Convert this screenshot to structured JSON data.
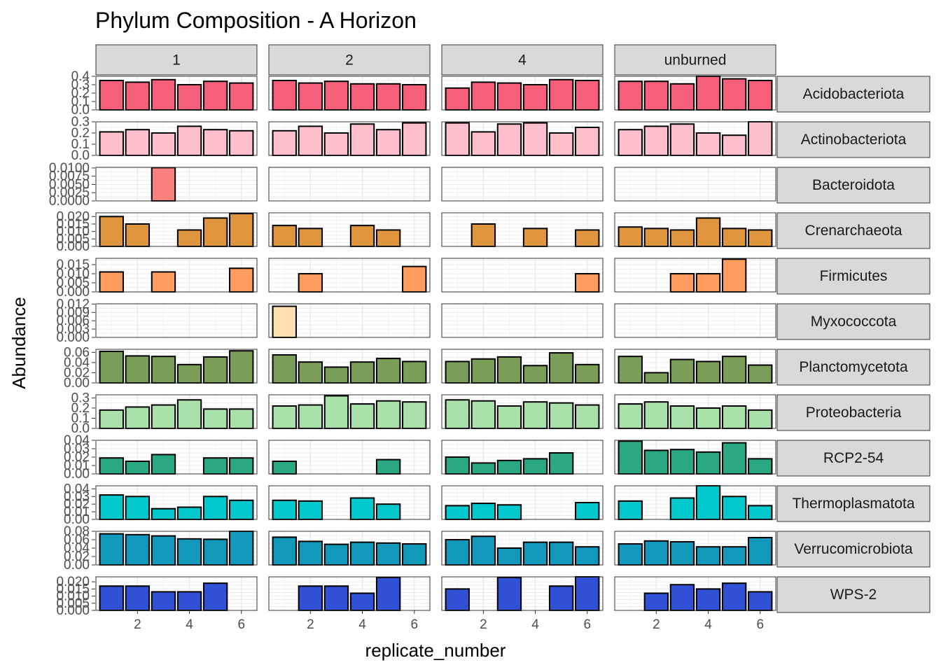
{
  "chart_data": {
    "type": "bar",
    "title": "Phylum Composition - A Horizon",
    "xlabel": "replicate_number",
    "ylabel": "Abundance",
    "facet_columns": [
      "1",
      "2",
      "4",
      "unburned"
    ],
    "x_ticks": [
      2,
      4,
      6
    ],
    "x_range": [
      0.4,
      6.6
    ],
    "grid": true,
    "legend": "none",
    "rows": [
      {
        "phylum": "Acidobacteriota",
        "color": "#f55f7a",
        "ylim": [
          0,
          0.4
        ],
        "y_ticks": [
          "0.4",
          "0.3",
          "0.2",
          "0.1",
          "0.0"
        ],
        "y_tick_values": [
          0.4,
          0.3,
          0.2,
          0.1,
          0.0
        ],
        "values": {
          "1": [
            0.35,
            0.33,
            0.36,
            0.3,
            0.34,
            0.32
          ],
          "2": [
            0.35,
            0.32,
            0.34,
            0.31,
            0.31,
            0.3
          ],
          "4": [
            0.26,
            0.33,
            0.32,
            0.3,
            0.36,
            0.35
          ],
          "unburned": [
            0.34,
            0.34,
            0.31,
            0.4,
            0.37,
            0.35
          ]
        }
      },
      {
        "phylum": "Actinobacteriota",
        "color": "#ffc0cb",
        "ylim": [
          0,
          0.3
        ],
        "y_ticks": [
          "0.3",
          "0.2",
          "0.1",
          "0.0"
        ],
        "y_tick_values": [
          0.3,
          0.2,
          0.1,
          0.0
        ],
        "values": {
          "1": [
            0.21,
            0.23,
            0.2,
            0.26,
            0.23,
            0.22
          ],
          "2": [
            0.22,
            0.26,
            0.2,
            0.28,
            0.23,
            0.29
          ],
          "4": [
            0.29,
            0.21,
            0.28,
            0.29,
            0.2,
            0.25
          ],
          "unburned": [
            0.23,
            0.26,
            0.28,
            0.2,
            0.18,
            0.3
          ]
        }
      },
      {
        "phylum": "Bacteroidota",
        "color": "#fa7f7f",
        "ylim": [
          0,
          0.0102
        ],
        "y_ticks": [
          "0.0100",
          "0.0075",
          "0.0050",
          "0.0025",
          "0.0000"
        ],
        "y_tick_values": [
          0.01,
          0.0075,
          0.005,
          0.0025,
          0.0
        ],
        "values": {
          "1": [
            null,
            null,
            0.0101,
            null,
            null,
            null
          ],
          "2": [
            null,
            null,
            null,
            null,
            null,
            null
          ],
          "4": [
            null,
            null,
            null,
            null,
            null,
            null
          ],
          "unburned": [
            null,
            null,
            null,
            null,
            null,
            null
          ]
        }
      },
      {
        "phylum": "Crenarchaeota",
        "color": "#de953e",
        "ylim": [
          0,
          0.0225
        ],
        "y_ticks": [
          "0.020",
          "0.015",
          "0.010",
          "0.005",
          "0.000"
        ],
        "y_tick_values": [
          0.02,
          0.015,
          0.01,
          0.005,
          0.0
        ],
        "values": {
          "1": [
            0.02,
            0.015,
            null,
            0.011,
            0.019,
            0.022
          ],
          "2": [
            0.014,
            0.012,
            null,
            0.014,
            0.011,
            null
          ],
          "4": [
            null,
            0.015,
            null,
            0.012,
            null,
            0.011
          ],
          "unburned": [
            0.013,
            0.012,
            0.011,
            0.019,
            0.012,
            0.011
          ]
        }
      },
      {
        "phylum": "Firmicutes",
        "color": "#ff9c5e",
        "ylim": [
          0,
          0.0185
        ],
        "y_ticks": [
          "0.015",
          "0.010",
          "0.005",
          "0.000"
        ],
        "y_tick_values": [
          0.015,
          0.01,
          0.005,
          0.0
        ],
        "values": {
          "1": [
            0.011,
            null,
            0.011,
            null,
            null,
            0.013
          ],
          "2": [
            null,
            0.01,
            null,
            null,
            null,
            0.014
          ],
          "4": [
            null,
            null,
            null,
            null,
            null,
            0.01
          ],
          "unburned": [
            null,
            null,
            0.01,
            0.01,
            0.018,
            null
          ]
        }
      },
      {
        "phylum": "Myxococcota",
        "color": "#ffe0b0",
        "ylim": [
          0,
          0.0121
        ],
        "y_ticks": [
          "0.012",
          "0.009",
          "0.006",
          "0.003",
          "0.000"
        ],
        "y_tick_values": [
          0.012,
          0.009,
          0.006,
          0.003,
          0.0
        ],
        "values": {
          "1": [
            null,
            null,
            null,
            null,
            null,
            null
          ],
          "2": [
            0.0112,
            null,
            null,
            null,
            null,
            null
          ],
          "4": [
            null,
            null,
            null,
            null,
            null,
            null
          ],
          "unburned": [
            null,
            null,
            null,
            null,
            null,
            null
          ]
        }
      },
      {
        "phylum": "Planctomycetota",
        "color": "#7a9e58",
        "ylim": [
          0,
          0.066
        ],
        "y_ticks": [
          "0.06",
          "0.04",
          "0.02",
          "0.00"
        ],
        "y_tick_values": [
          0.06,
          0.04,
          0.02,
          0.0
        ],
        "values": {
          "1": [
            0.062,
            0.053,
            0.052,
            0.036,
            0.051,
            0.063
          ],
          "2": [
            0.055,
            0.041,
            0.031,
            0.041,
            0.048,
            0.042
          ],
          "4": [
            0.042,
            0.047,
            0.051,
            0.034,
            0.059,
            0.036
          ],
          "unburned": [
            0.052,
            0.02,
            0.046,
            0.042,
            0.052,
            0.035
          ]
        }
      },
      {
        "phylum": "Proteobacteria",
        "color": "#aae0aa",
        "ylim": [
          0,
          0.33
        ],
        "y_ticks": [
          "0.3",
          "0.2",
          "0.1",
          "0.0"
        ],
        "y_tick_values": [
          0.3,
          0.2,
          0.1,
          0.0
        ],
        "values": {
          "1": [
            0.18,
            0.21,
            0.23,
            0.28,
            0.19,
            0.19
          ],
          "2": [
            0.22,
            0.23,
            0.32,
            0.24,
            0.27,
            0.26
          ],
          "4": [
            0.28,
            0.27,
            0.22,
            0.26,
            0.25,
            0.23
          ],
          "unburned": [
            0.24,
            0.26,
            0.22,
            0.2,
            0.22,
            0.18
          ]
        }
      },
      {
        "phylum": "RCP2-54",
        "color": "#2aa884",
        "ylim": [
          0,
          0.04
        ],
        "y_ticks": [
          "0.04",
          "0.03",
          "0.02",
          "0.01",
          "0.00"
        ],
        "y_tick_values": [
          0.04,
          0.03,
          0.02,
          0.01,
          0.0
        ],
        "values": {
          "1": [
            0.019,
            0.015,
            0.023,
            null,
            0.019,
            0.019
          ],
          "2": [
            0.015,
            null,
            null,
            null,
            0.017,
            null
          ],
          "4": [
            0.02,
            0.013,
            0.016,
            0.018,
            0.025,
            null
          ],
          "unburned": [
            0.039,
            0.028,
            0.029,
            0.026,
            0.037,
            0.018
          ]
        }
      },
      {
        "phylum": "Thermoplasmatota",
        "color": "#00c8cc",
        "ylim": [
          0,
          0.044
        ],
        "y_ticks": [
          "0.04",
          "0.03",
          "0.02",
          "0.01",
          "0.00"
        ],
        "y_tick_values": [
          0.04,
          0.03,
          0.02,
          0.01,
          0.0
        ],
        "values": {
          "1": [
            0.032,
            0.03,
            0.014,
            0.016,
            0.03,
            0.025
          ],
          "2": [
            0.025,
            0.024,
            null,
            0.028,
            0.02,
            null
          ],
          "4": [
            0.018,
            0.021,
            0.019,
            null,
            null,
            0.022
          ],
          "unburned": [
            0.024,
            null,
            0.028,
            0.044,
            0.03,
            0.018
          ]
        }
      },
      {
        "phylum": "Verrucomicrobiota",
        "color": "#1198bb",
        "ylim": [
          0,
          0.08
        ],
        "y_ticks": [
          "0.08",
          "0.06",
          "0.04",
          "0.02",
          "0.00"
        ],
        "y_tick_values": [
          0.08,
          0.06,
          0.04,
          0.02,
          0.0
        ],
        "values": {
          "1": [
            0.074,
            0.072,
            0.069,
            0.062,
            0.061,
            0.081
          ],
          "2": [
            0.066,
            0.056,
            0.049,
            0.054,
            0.052,
            0.05
          ],
          "4": [
            0.06,
            0.068,
            0.04,
            0.054,
            0.054,
            0.043
          ],
          "unburned": [
            0.05,
            0.057,
            0.055,
            0.043,
            0.043,
            0.065
          ]
        }
      },
      {
        "phylum": "WPS-2",
        "color": "#3050d6",
        "ylim": [
          0,
          0.0235
        ],
        "y_ticks": [
          "0.020",
          "0.015",
          "0.010",
          "0.005",
          "0.000"
        ],
        "y_tick_values": [
          0.02,
          0.015,
          0.01,
          0.005,
          0.0
        ],
        "values": {
          "1": [
            0.017,
            0.017,
            0.013,
            0.013,
            0.019,
            null
          ],
          "2": [
            null,
            0.017,
            0.017,
            0.012,
            0.023,
            null
          ],
          "4": [
            0.015,
            null,
            0.023,
            null,
            0.017,
            0.025
          ],
          "unburned": [
            null,
            0.012,
            0.018,
            0.015,
            0.019,
            0.013
          ]
        }
      }
    ]
  }
}
